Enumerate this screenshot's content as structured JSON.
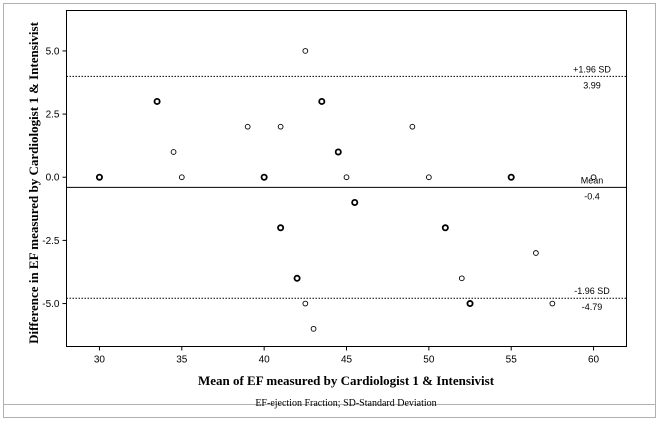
{
  "chart_data": {
    "type": "scatter",
    "title": "",
    "xlabel": "Mean of  EF measured by Cardiologist 1 & Intensivist",
    "ylabel": "Difference in EF measured  by Cardiologist 1 & Intensivist",
    "caption": "EF-ejection Fraction; SD-Standard Deviation",
    "xlim": [
      28,
      62
    ],
    "ylim": [
      -6.7,
      6.6
    ],
    "xticks": [
      30,
      35,
      40,
      45,
      50,
      55,
      60
    ],
    "xtick_labels": [
      "30",
      "35",
      "40",
      "45",
      "50",
      "55",
      "60"
    ],
    "yticks": [
      5.0,
      2.5,
      0.0,
      -2.5,
      -5.0
    ],
    "ytick_labels": [
      "5.0",
      "2.5",
      "0.0",
      "-2.5",
      "-5.0"
    ],
    "grid": false,
    "reference_lines": [
      {
        "name": "+1.96 SD",
        "y": 3.99,
        "value_label": "3.99",
        "style": "dotted"
      },
      {
        "name": "Mean",
        "y": -0.4,
        "value_label": "-0.4",
        "style": "solid"
      },
      {
        "name": "-1.96 SD",
        "y": -4.79,
        "value_label": "-4.79",
        "style": "dotted"
      }
    ],
    "points": [
      {
        "x": 30,
        "y": 0,
        "bold": true
      },
      {
        "x": 33.5,
        "y": 3,
        "bold": true
      },
      {
        "x": 34.5,
        "y": 1,
        "bold": false
      },
      {
        "x": 35,
        "y": 0,
        "bold": false
      },
      {
        "x": 39,
        "y": 2,
        "bold": false
      },
      {
        "x": 40,
        "y": 0,
        "bold": true
      },
      {
        "x": 41,
        "y": 2,
        "bold": false
      },
      {
        "x": 41,
        "y": -2,
        "bold": true
      },
      {
        "x": 42,
        "y": -4,
        "bold": true
      },
      {
        "x": 42.5,
        "y": 5,
        "bold": false
      },
      {
        "x": 42.5,
        "y": -5,
        "bold": false
      },
      {
        "x": 43,
        "y": -6,
        "bold": false
      },
      {
        "x": 43.5,
        "y": 3,
        "bold": true
      },
      {
        "x": 44.5,
        "y": 1,
        "bold": true
      },
      {
        "x": 45,
        "y": 0,
        "bold": false
      },
      {
        "x": 45.5,
        "y": -1,
        "bold": true
      },
      {
        "x": 49,
        "y": 2,
        "bold": false
      },
      {
        "x": 50,
        "y": 0,
        "bold": false
      },
      {
        "x": 51,
        "y": -2,
        "bold": true
      },
      {
        "x": 52,
        "y": -4,
        "bold": false
      },
      {
        "x": 52.5,
        "y": -5,
        "bold": true
      },
      {
        "x": 55,
        "y": 0,
        "bold": true
      },
      {
        "x": 56.5,
        "y": -3,
        "bold": false
      },
      {
        "x": 57.5,
        "y": -5,
        "bold": false
      },
      {
        "x": 60,
        "y": 0,
        "bold": false
      }
    ]
  }
}
